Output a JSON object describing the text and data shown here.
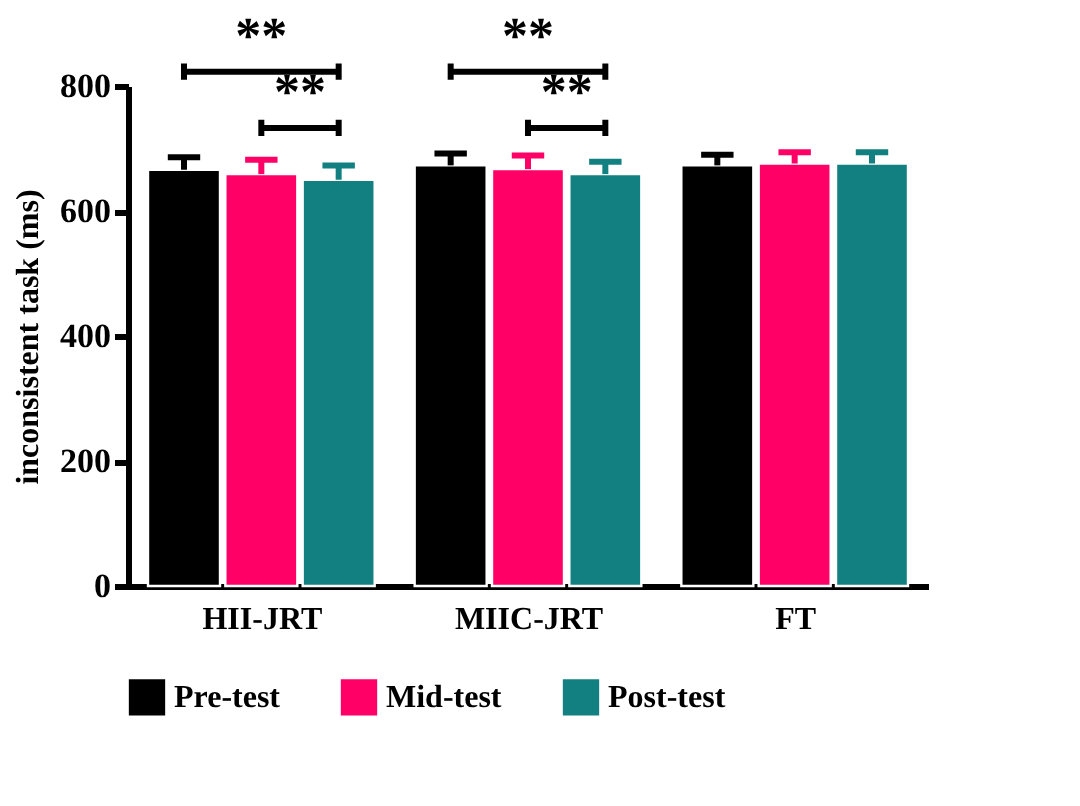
{
  "chart_data": {
    "type": "bar",
    "ylabel": "inconsistent task (ms)",
    "categories": [
      "HII-JRT",
      "MIIC-JRT",
      "FT"
    ],
    "series": [
      {
        "name": "Pre-test",
        "color": "#000000",
        "values": [
          666,
          673,
          673
        ],
        "errors": [
          [
            666,
            686
          ],
          [
            673,
            692
          ],
          [
            673,
            690
          ]
        ]
      },
      {
        "name": "Mid-test",
        "color": "#ff0066",
        "values": [
          659,
          667,
          676
        ],
        "errors": [
          [
            659,
            682
          ],
          [
            667,
            689
          ],
          [
            676,
            694
          ]
        ]
      },
      {
        "name": "Post-test",
        "color": "#128080",
        "values": [
          650,
          659,
          676
        ],
        "errors": [
          [
            650,
            673
          ],
          [
            659,
            679
          ],
          [
            676,
            694
          ]
        ]
      }
    ],
    "ylim": [
      0,
      800
    ],
    "yticks": [
      0,
      200,
      400,
      600,
      800
    ],
    "grid": false,
    "legend": "bottom",
    "annotations": [
      "**",
      "**",
      "**",
      "**"
    ]
  }
}
